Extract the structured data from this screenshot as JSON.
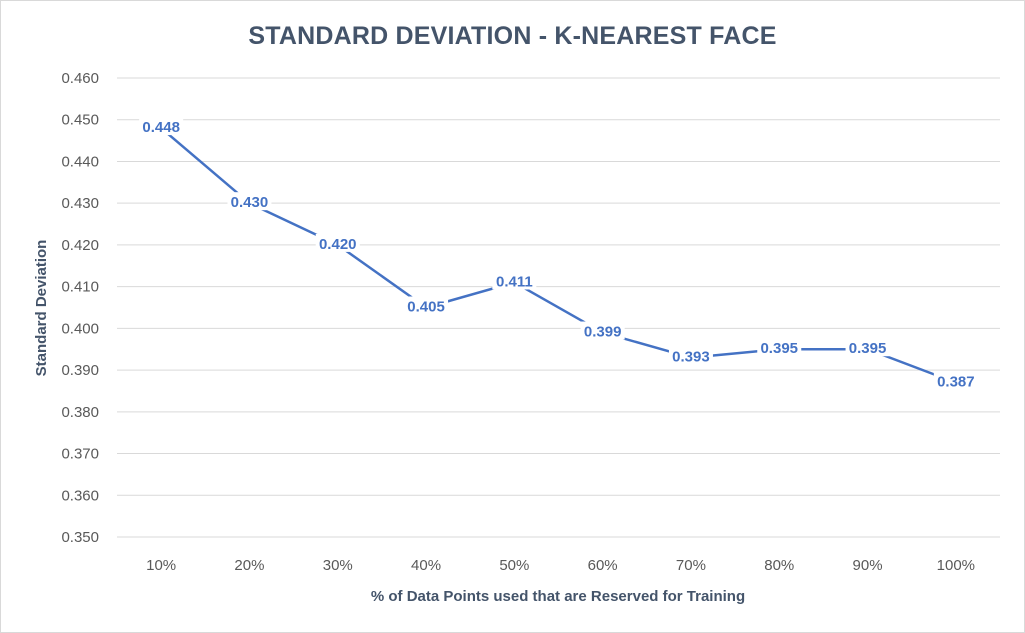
{
  "chart_data": {
    "type": "line",
    "title": "STANDARD DEVIATION - K-NEAREST FACE",
    "xlabel": "% of Data Points used that are Reserved for Training",
    "ylabel": "Standard Deviation",
    "categories": [
      "10%",
      "20%",
      "30%",
      "40%",
      "50%",
      "60%",
      "70%",
      "80%",
      "90%",
      "100%"
    ],
    "series": [
      {
        "values": [
          0.448,
          0.43,
          0.42,
          0.405,
          0.411,
          0.399,
          0.393,
          0.395,
          0.395,
          0.387
        ],
        "labels": [
          "0.448",
          "0.430",
          "0.420",
          "0.405",
          "0.411",
          "0.399",
          "0.393",
          "0.395",
          "0.395",
          "0.387"
        ],
        "color": "#4472c4"
      }
    ],
    "ylim": [
      0.35,
      0.46
    ],
    "yticks": [
      "0.350",
      "0.360",
      "0.370",
      "0.380",
      "0.390",
      "0.400",
      "0.410",
      "0.420",
      "0.430",
      "0.440",
      "0.450",
      "0.460"
    ],
    "grid": true,
    "legend": "none"
  }
}
